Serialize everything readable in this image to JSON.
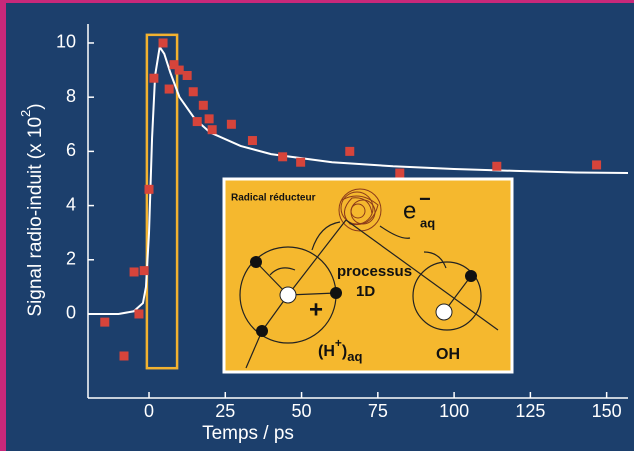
{
  "chart_data": {
    "type": "scatter",
    "x_label": "Temps / ps",
    "y_label": "Signal radio-induit (x 10",
    "y_label_exponent": "2",
    "y_label_end": ")",
    "xlim": [
      -20,
      157
    ],
    "ylim": [
      -3.1,
      10.7
    ],
    "xticks": [
      0,
      25,
      50,
      75,
      100,
      125,
      150
    ],
    "yticks": [
      0,
      2,
      4,
      6,
      8,
      10
    ],
    "highlight": {
      "color": "#f2b230",
      "xlim": [
        -0.7,
        9.2
      ],
      "ylim": [
        -2,
        10.3
      ]
    },
    "series": [
      {
        "type": "scatter",
        "color": "#d6443b",
        "x": [
          -14.5,
          -8.2,
          -4.9,
          -3.3,
          -1.6,
          0,
          1.6,
          4.6,
          6.6,
          8.2,
          9.9,
          12.5,
          14.5,
          15.8,
          17.8,
          19.7,
          20.7,
          27,
          33.9,
          43.8,
          49.7,
          65.8,
          82.2,
          114,
          146.7
        ],
        "values": [
          -0.3,
          -1.55,
          1.55,
          0,
          1.6,
          4.6,
          8.7,
          10,
          8.3,
          9.2,
          9.0,
          8.8,
          8.2,
          7.1,
          7.7,
          7.2,
          6.8,
          7.0,
          6.4,
          5.8,
          5.6,
          6.0,
          5.2,
          5.45,
          5.5
        ]
      },
      {
        "type": "line",
        "color": "#ffffff",
        "x": [
          -20,
          -10,
          -5,
          -2,
          -1,
          0,
          1,
          2,
          3.5,
          5,
          7,
          10,
          15,
          20,
          30,
          40,
          60,
          80,
          100,
          120,
          140,
          157
        ],
        "values": [
          0,
          0,
          0.1,
          0.4,
          1,
          3,
          6.5,
          8.8,
          9.85,
          9.6,
          8.9,
          8.0,
          7.2,
          6.7,
          6.2,
          5.9,
          5.6,
          5.45,
          5.35,
          5.28,
          5.22,
          5.2
        ]
      }
    ]
  },
  "inset": {
    "radical": "Radical réducteur",
    "electron": "e",
    "electron_sub": "aq",
    "electron_sup": "−",
    "process": "processus",
    "process_dim": "1D",
    "plus": "+",
    "proton_open": "(H",
    "proton_sup": "+",
    "proton_close": ")",
    "proton_sub": "aq",
    "hydroxyl": "OH"
  }
}
